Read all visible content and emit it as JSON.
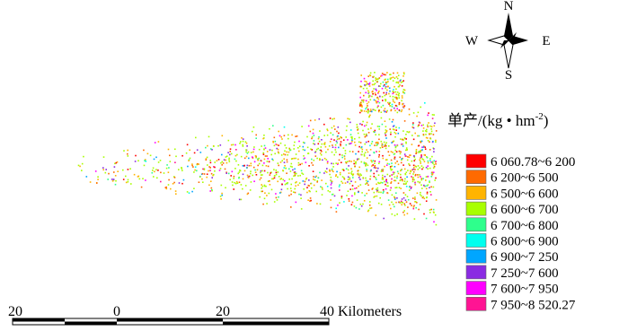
{
  "compass": {
    "north": "N",
    "south": "S",
    "west": "W",
    "east": "E"
  },
  "legend": {
    "title": {
      "prefix": "单产/(kg • hm",
      "sup": "-2",
      "suffix": ")"
    },
    "items": [
      {
        "label": "6 060.78~6 200",
        "color": "#ff0000"
      },
      {
        "label": "6 200~6 500",
        "color": "#ff6a00"
      },
      {
        "label": "6 500~6 600",
        "color": "#ffb400"
      },
      {
        "label": "6 600~6 700",
        "color": "#a8ff00"
      },
      {
        "label": "6 700~6 800",
        "color": "#2eff8c"
      },
      {
        "label": "6 800~6 900",
        "color": "#00ffee"
      },
      {
        "label": "6 900~7 250",
        "color": "#00a6ff"
      },
      {
        "label": "7 250~7 600",
        "color": "#8a2be2"
      },
      {
        "label": "7 600~7 950",
        "color": "#ff00ff"
      },
      {
        "label": "7 950~8 520.27",
        "color": "#ff1493"
      }
    ]
  },
  "scale_bar": {
    "labels": [
      "20",
      "0",
      "20",
      "40 Kilometers"
    ]
  }
}
